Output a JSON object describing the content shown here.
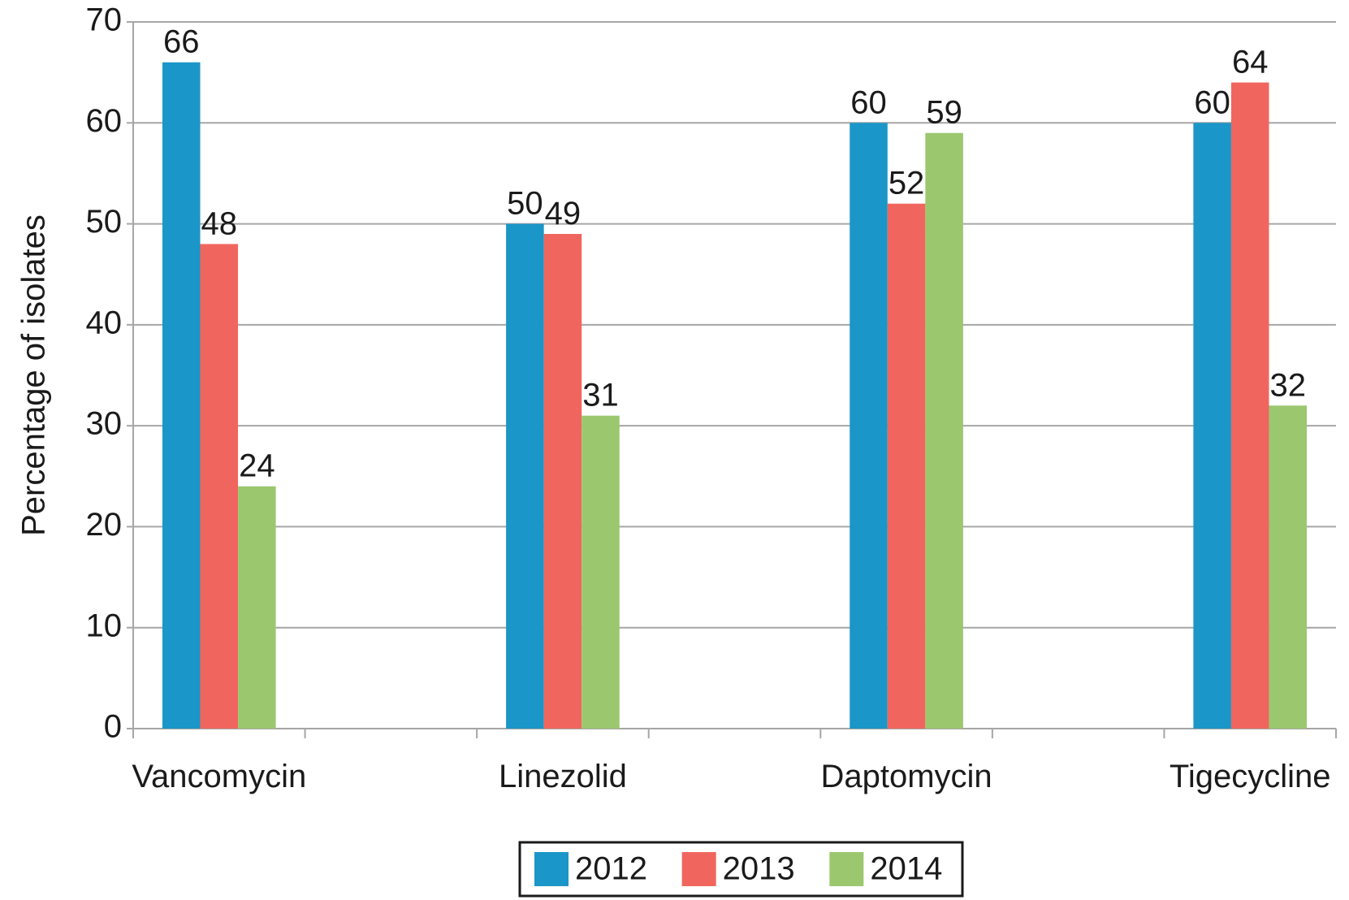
{
  "chart_data": {
    "type": "bar",
    "y_label": "Percentage of isolates",
    "categories": [
      "Vancomycin",
      null,
      "Linezolid",
      null,
      "Daptomycin",
      null,
      "Tigecycline"
    ],
    "series": [
      {
        "name": "2012",
        "color": "#1a96c8",
        "values": [
          66,
          null,
          50,
          null,
          60,
          null,
          60
        ]
      },
      {
        "name": "2013",
        "color": "#f0665e",
        "values": [
          48,
          null,
          49,
          null,
          52,
          null,
          64
        ]
      },
      {
        "name": "2014",
        "color": "#9bc86f",
        "values": [
          24,
          null,
          31,
          null,
          59,
          null,
          32
        ]
      }
    ],
    "ylim": [
      0,
      70
    ],
    "yticks": [
      0,
      10,
      20,
      30,
      40,
      50,
      60,
      70
    ],
    "grid": true,
    "legend": "bottom"
  }
}
